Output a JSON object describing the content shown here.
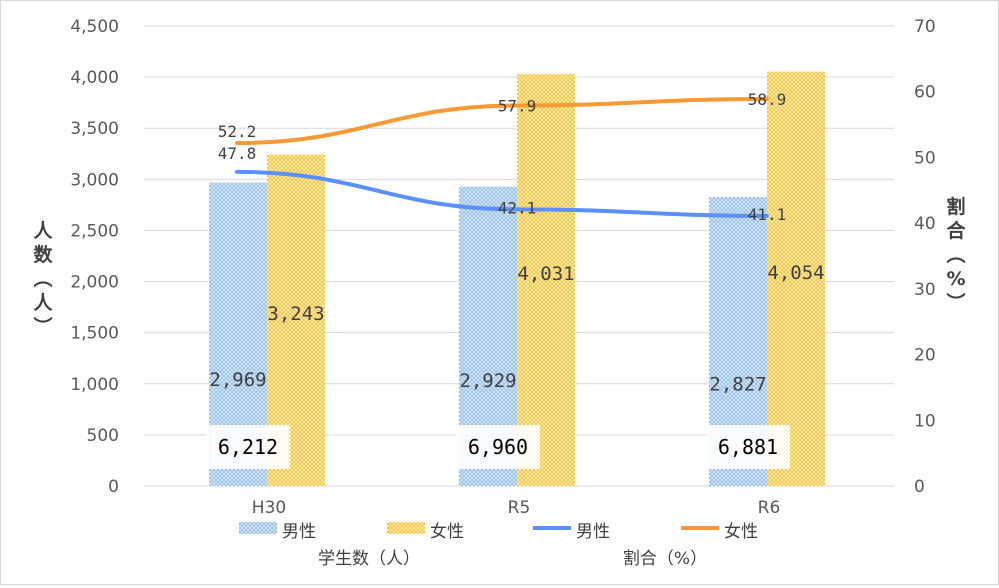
{
  "chart_data": {
    "type": "bar",
    "categories": [
      "H30",
      "R5",
      "R6"
    ],
    "series": [
      {
        "name": "男性",
        "values": [
          2969,
          2929,
          2827
        ],
        "axis": "left",
        "kind": "bar",
        "color": "#9dc3e6",
        "labels": [
          "2,969",
          "2,929",
          "2,827"
        ]
      },
      {
        "name": "女性",
        "values": [
          3243,
          4031,
          4054
        ],
        "axis": "left",
        "kind": "bar",
        "color": "#ffd966",
        "labels": [
          "3,243",
          "4,031",
          "4,054"
        ]
      },
      {
        "name": "男性",
        "values": [
          47.8,
          42.1,
          41.1
        ],
        "axis": "right",
        "kind": "line",
        "color": "#5b8ff9",
        "labels": [
          "47.8",
          "42.1",
          "41.1"
        ]
      },
      {
        "name": "女性",
        "values": [
          52.2,
          57.9,
          58.9
        ],
        "axis": "right",
        "kind": "line",
        "color": "#f79a34",
        "labels": [
          "52.2",
          "57.9",
          "58.9"
        ]
      }
    ],
    "totals": {
      "values": [
        6212,
        6960,
        6881
      ],
      "labels": [
        "6,212",
        "6,960",
        "6,881"
      ]
    },
    "ylim": [
      0,
      4500
    ],
    "y_ticks": [
      "0",
      "500",
      "1,000",
      "1,500",
      "2,000",
      "2,500",
      "3,000",
      "3,500",
      "4,000",
      "4,500"
    ],
    "y2lim": [
      0,
      70
    ],
    "y2_ticks": [
      "0",
      "10",
      "20",
      "30",
      "40",
      "50",
      "60",
      "70"
    ],
    "ylabel": "人数（人）",
    "y2label": "割合（%）",
    "grid": true,
    "legend_position": "bottom",
    "legend_groups": [
      "学生数（人）",
      "割合（%）"
    ]
  }
}
